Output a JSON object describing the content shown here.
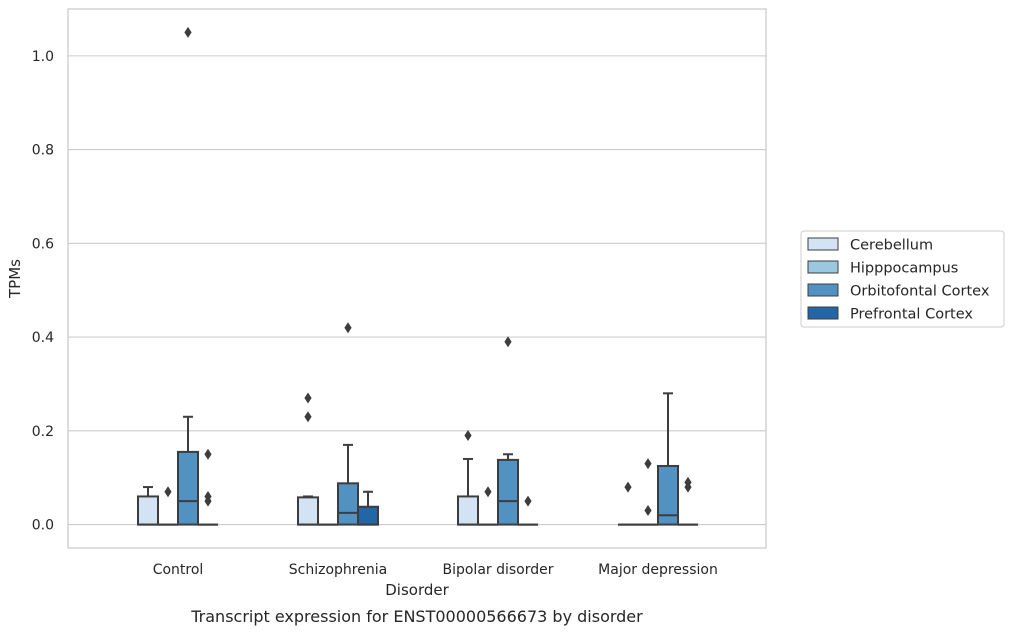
{
  "chart_data": {
    "type": "box",
    "title": "",
    "caption": "Transcript expression for ENST00000566673 by disorder",
    "xlabel": "Disorder",
    "ylabel": "TPMs",
    "ylim": [
      -0.05,
      1.1
    ],
    "yticks": [
      0.0,
      0.2,
      0.4,
      0.6,
      0.8,
      1.0
    ],
    "ytick_labels": [
      "0.0",
      "0.2",
      "0.4",
      "0.6",
      "0.8",
      "1.0"
    ],
    "grid": "horizontal",
    "legend_position": "right",
    "categories": [
      "Control",
      "Schizophrenia",
      "Bipolar disorder",
      "Major depression"
    ],
    "series": [
      {
        "name": "Cerebellum",
        "color": "#d4e3f3",
        "boxes": [
          {
            "category": "Control",
            "whislo": 0.0,
            "q1": 0.0,
            "med": 0.0,
            "q3": 0.06,
            "whishi": 0.08,
            "fliers": []
          },
          {
            "category": "Schizophrenia",
            "whislo": 0.0,
            "q1": 0.0,
            "med": 0.0,
            "q3": 0.058,
            "whishi": 0.06,
            "fliers": [
              0.23,
              0.27
            ]
          },
          {
            "category": "Bipolar disorder",
            "whislo": 0.0,
            "q1": 0.0,
            "med": 0.0,
            "q3": 0.06,
            "whishi": 0.14,
            "fliers": [
              0.19
            ]
          },
          {
            "category": "Major depression",
            "whislo": 0.0,
            "q1": 0.0,
            "med": 0.0,
            "q3": 0.0,
            "whishi": 0.0,
            "fliers": [
              0.08
            ]
          }
        ]
      },
      {
        "name": "Hipppocampus",
        "color": "#9ac8e0",
        "boxes": [
          {
            "category": "Control",
            "whislo": 0.0,
            "q1": 0.0,
            "med": 0.0,
            "q3": 0.0,
            "whishi": 0.0,
            "fliers": [
              0.07
            ]
          },
          {
            "category": "Schizophrenia",
            "whislo": 0.0,
            "q1": 0.0,
            "med": 0.0,
            "q3": 0.0,
            "whishi": 0.0,
            "fliers": []
          },
          {
            "category": "Bipolar disorder",
            "whislo": 0.0,
            "q1": 0.0,
            "med": 0.0,
            "q3": 0.0,
            "whishi": 0.0,
            "fliers": [
              0.07
            ]
          },
          {
            "category": "Major depression",
            "whislo": 0.0,
            "q1": 0.0,
            "med": 0.0,
            "q3": 0.0,
            "whishi": 0.0,
            "fliers": [
              0.03,
              0.13
            ]
          }
        ]
      },
      {
        "name": "Orbitofontal Cortex",
        "color": "#5192c3",
        "boxes": [
          {
            "category": "Control",
            "whislo": 0.0,
            "q1": 0.0,
            "med": 0.05,
            "q3": 0.155,
            "whishi": 0.23,
            "fliers": [
              1.05
            ]
          },
          {
            "category": "Schizophrenia",
            "whislo": 0.0,
            "q1": 0.0,
            "med": 0.025,
            "q3": 0.088,
            "whishi": 0.17,
            "fliers": [
              0.42
            ]
          },
          {
            "category": "Bipolar disorder",
            "whislo": 0.0,
            "q1": 0.0,
            "med": 0.05,
            "q3": 0.138,
            "whishi": 0.15,
            "fliers": [
              0.39
            ]
          },
          {
            "category": "Major depression",
            "whislo": 0.0,
            "q1": 0.0,
            "med": 0.02,
            "q3": 0.125,
            "whishi": 0.28,
            "fliers": []
          }
        ]
      },
      {
        "name": "Prefrontal Cortex",
        "color": "#2266a8",
        "boxes": [
          {
            "category": "Control",
            "whislo": 0.0,
            "q1": 0.0,
            "med": 0.0,
            "q3": 0.0,
            "whishi": 0.0,
            "fliers": [
              0.05,
              0.06,
              0.15
            ]
          },
          {
            "category": "Schizophrenia",
            "whislo": 0.0,
            "q1": 0.0,
            "med": 0.0,
            "q3": 0.038,
            "whishi": 0.07,
            "fliers": []
          },
          {
            "category": "Bipolar disorder",
            "whislo": 0.0,
            "q1": 0.0,
            "med": 0.0,
            "q3": 0.0,
            "whishi": 0.0,
            "fliers": [
              0.05
            ]
          },
          {
            "category": "Major depression",
            "whislo": 0.0,
            "q1": 0.0,
            "med": 0.0,
            "q3": 0.0,
            "whishi": 0.0,
            "fliers": [
              0.08,
              0.09
            ]
          }
        ]
      }
    ]
  }
}
